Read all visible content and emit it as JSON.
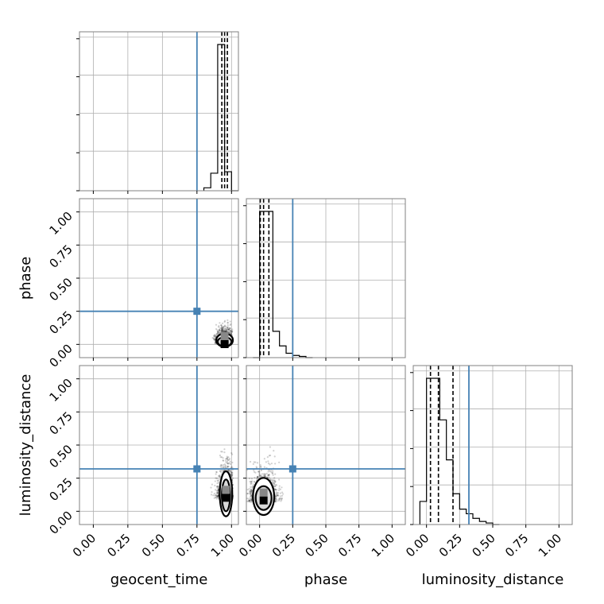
{
  "chart_data": {
    "type": "corner",
    "parameters": [
      {
        "name": "geocent_time",
        "label": "geocent_time",
        "range": [
          -0.1,
          1.05
        ],
        "ticks": [
          "0.00",
          "0.25",
          "0.50",
          "0.75",
          "1.00"
        ],
        "tick_values": [
          0,
          0.25,
          0.5,
          0.75,
          1.0
        ],
        "truth": 0.75,
        "quantiles": [
          0.93,
          0.95,
          0.97
        ]
      },
      {
        "name": "phase",
        "label": "phase",
        "range": [
          -0.1,
          1.1
        ],
        "ticks": [
          "0.00",
          "0.25",
          "0.50",
          "0.75",
          "1.00"
        ],
        "tick_values": [
          0,
          0.25,
          0.5,
          0.75,
          1.0
        ],
        "truth": 0.25,
        "quantiles": [
          0.005,
          0.03,
          0.07
        ]
      },
      {
        "name": "luminosity_distance",
        "label": "luminosity_distance",
        "range": [
          -0.1,
          1.1
        ],
        "ticks": [
          "0.00",
          "0.25",
          "0.50",
          "0.75",
          "1.00"
        ],
        "tick_values": [
          0,
          0.25,
          0.5,
          0.75,
          1.0
        ],
        "truth": 0.32,
        "quantiles": [
          0.03,
          0.09,
          0.2
        ]
      }
    ],
    "histograms": [
      {
        "parameter": "geocent_time",
        "bin_edges": [
          0.8,
          0.85,
          0.9,
          0.95,
          1.0,
          1.05
        ],
        "counts": [
          0.02,
          0.12,
          1.0,
          0.13,
          0.0
        ]
      },
      {
        "parameter": "phase",
        "bin_edges": [
          -0.05,
          0.0,
          0.05,
          0.1,
          0.15,
          0.2,
          0.25,
          0.3,
          0.35,
          0.4
        ],
        "counts": [
          0.0,
          1.0,
          1.0,
          0.18,
          0.08,
          0.03,
          0.015,
          0.008,
          0.0
        ]
      },
      {
        "parameter": "luminosity_distance",
        "bin_edges": [
          -0.05,
          0.0,
          0.05,
          0.1,
          0.15,
          0.2,
          0.25,
          0.3,
          0.35,
          0.4,
          0.45,
          0.5,
          0.55
        ],
        "counts": [
          0.15,
          0.95,
          0.95,
          0.68,
          0.42,
          0.2,
          0.1,
          0.07,
          0.04,
          0.02,
          0.01,
          0.0
        ]
      }
    ],
    "pairs": [
      {
        "x": "geocent_time",
        "y": "phase",
        "center": [
          0.95,
          0.02
        ],
        "spread": [
          0.03,
          0.05
        ],
        "contours": [
          [
            0.05,
            0.035
          ],
          [
            0.06,
            0.05
          ]
        ]
      },
      {
        "x": "geocent_time",
        "y": "luminosity_distance",
        "center": [
          0.96,
          0.12
        ],
        "spread": [
          0.03,
          0.1
        ],
        "contours": [
          [
            0.03,
            0.12
          ],
          [
            0.045,
            0.17
          ]
        ]
      },
      {
        "x": "phase",
        "y": "luminosity_distance",
        "center": [
          0.03,
          0.1
        ],
        "spread": [
          0.05,
          0.1
        ],
        "contours": [
          [
            0.06,
            0.09
          ],
          [
            0.08,
            0.14
          ]
        ]
      }
    ],
    "truth_color": "#4682b4",
    "grid": true
  }
}
